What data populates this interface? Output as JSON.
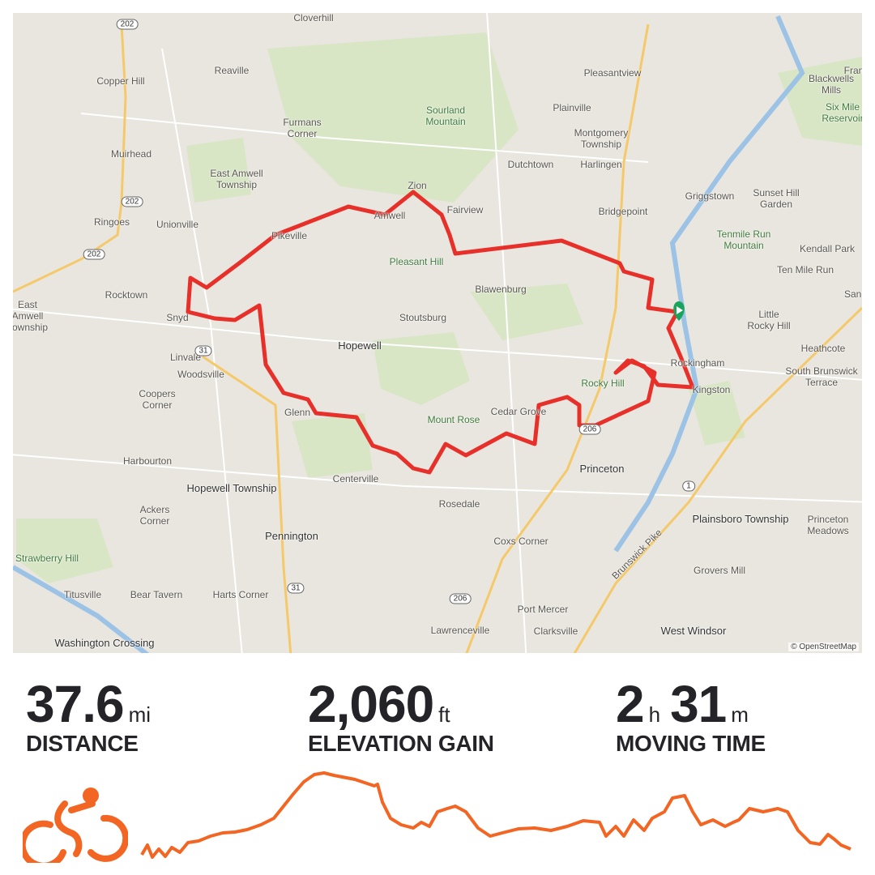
{
  "map": {
    "attribution": "© OpenStreetMap",
    "route_color": "#e8302a",
    "start_marker_color": "#1aa35c",
    "labels": [
      "Cloverhill",
      "Reaville",
      "Copper Hill",
      "Pleasantview",
      "Blackwells Mills",
      "Sourland Mountain",
      "Plainville",
      "Six Mile Reservoir",
      "Furmans Corner",
      "Montgomery Township",
      "Muirhead",
      "Dutchtown",
      "Harlingen",
      "East Amwell Township",
      "Zion",
      "Griggstown",
      "Sunset Hill Garden",
      "Fairview",
      "Ringoes",
      "Unionville",
      "Bridgepoint",
      "Tenmile Run Mountain",
      "Kendall Park",
      "Pleasant Hill",
      "Ten Mile Run",
      "Rocktown",
      "Blawenburg",
      "East Amwell Township",
      "Little Rocky Hill",
      "Stoutsburg",
      "Hopewell",
      "Linvale",
      "Heathcote",
      "Rockingham",
      "Woodsville",
      "Rocky Hill",
      "South Brunswick Terrace",
      "Kingston",
      "Coopers Corner",
      "Glenn",
      "Mount Rose",
      "Cedar Grove",
      "Harbourton",
      "Princeton",
      "Hopewell Township",
      "Centerville",
      "Rosedale",
      "Ackers Corner",
      "Plainsboro Township",
      "Princeton Meadows",
      "Pennington",
      "Coxs Corner",
      "Strawberry Hill",
      "Grovers Mill",
      "Titusville",
      "Bear Tavern",
      "Harts Corner",
      "Port Mercer",
      "Lawrenceville",
      "Clarksville",
      "West Windsor",
      "Washington Crossing",
      "Brunswick Pike",
      "Snyd",
      "Pikeville",
      "Amwell",
      "Fran",
      "Sand"
    ],
    "shields": [
      "202",
      "202",
      "202",
      "31",
      "31",
      "206",
      "1",
      "206"
    ]
  },
  "stats": [
    {
      "value": "37.6",
      "unit": "mi",
      "label": "DISTANCE"
    },
    {
      "value": "2,060",
      "unit": "ft",
      "label": "ELEVATION GAIN"
    },
    {
      "value_h": "2",
      "unit_h": "h",
      "value_m": "31",
      "unit_m": "m",
      "label": "MOVING TIME"
    }
  ],
  "activity_icon": "cycling-icon",
  "accent_color": "#f26522"
}
